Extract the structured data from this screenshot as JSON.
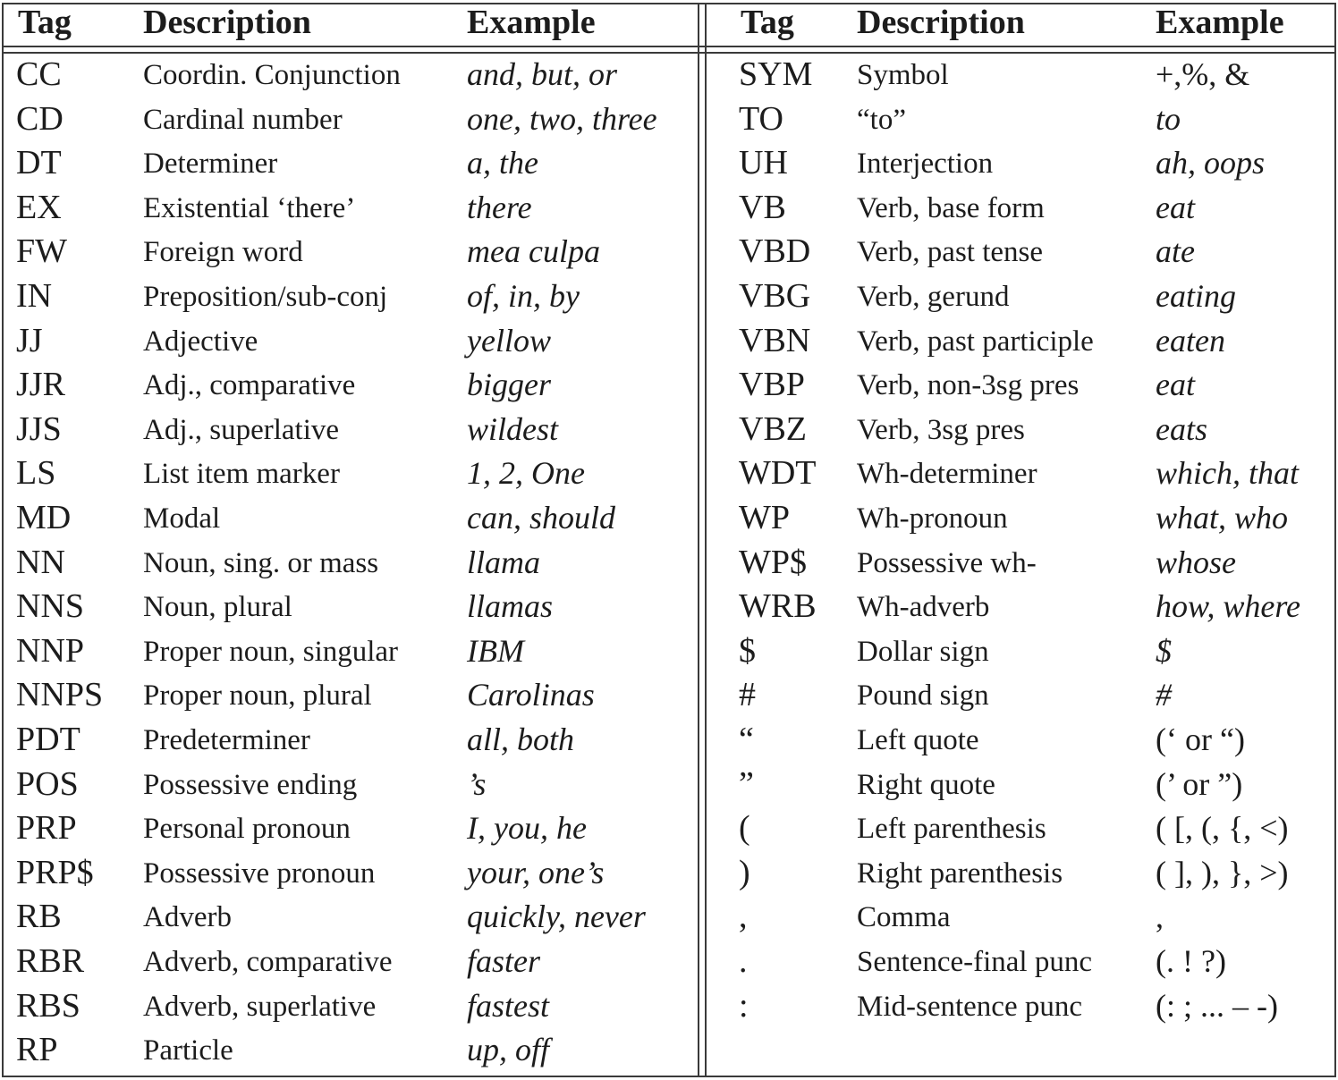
{
  "headers": {
    "left": {
      "tag": "Tag",
      "description": "Description",
      "example": "Example"
    },
    "right": {
      "tag": "Tag",
      "description": "Description",
      "example": "Example"
    }
  },
  "left_rows": [
    {
      "tag": "CC",
      "description": "Coordin. Conjunction",
      "example": "and, but, or",
      "italic": true
    },
    {
      "tag": "CD",
      "description": "Cardinal number",
      "example": "one, two, three",
      "italic": true
    },
    {
      "tag": "DT",
      "description": "Determiner",
      "example": "a, the",
      "italic": true
    },
    {
      "tag": "EX",
      "description": "Existential ‘there’",
      "example": "there",
      "italic": true
    },
    {
      "tag": "FW",
      "description": "Foreign word",
      "example": "mea culpa",
      "italic": true
    },
    {
      "tag": "IN",
      "description": "Preposition/sub-conj",
      "example": "of, in, by",
      "italic": true
    },
    {
      "tag": "JJ",
      "description": "Adjective",
      "example": "yellow",
      "italic": true
    },
    {
      "tag": "JJR",
      "description": "Adj., comparative",
      "example": "bigger",
      "italic": true
    },
    {
      "tag": "JJS",
      "description": "Adj., superlative",
      "example": "wildest",
      "italic": true
    },
    {
      "tag": "LS",
      "description": "List item marker",
      "example": "1, 2, One",
      "italic": true
    },
    {
      "tag": "MD",
      "description": "Modal",
      "example": "can, should",
      "italic": true
    },
    {
      "tag": "NN",
      "description": "Noun, sing. or mass",
      "example": "llama",
      "italic": true
    },
    {
      "tag": "NNS",
      "description": "Noun, plural",
      "example": "llamas",
      "italic": true
    },
    {
      "tag": "NNP",
      "description": "Proper noun, singular",
      "example": "IBM",
      "italic": true
    },
    {
      "tag": "NNPS",
      "description": "Proper noun, plural",
      "example": "Carolinas",
      "italic": true
    },
    {
      "tag": "PDT",
      "description": "Predeterminer",
      "example": "all, both",
      "italic": true
    },
    {
      "tag": "POS",
      "description": "Possessive ending",
      "example": "’s",
      "italic": true
    },
    {
      "tag": "PRP",
      "description": "Personal pronoun",
      "example": "I, you, he",
      "italic": true
    },
    {
      "tag": "PRP$",
      "description": "Possessive pronoun",
      "example": "your, one’s",
      "italic": true
    },
    {
      "tag": "RB",
      "description": "Adverb",
      "example": "quickly, never",
      "italic": true
    },
    {
      "tag": "RBR",
      "description": "Adverb, comparative",
      "example": "faster",
      "italic": true
    },
    {
      "tag": "RBS",
      "description": "Adverb, superlative",
      "example": "fastest",
      "italic": true
    },
    {
      "tag": "RP",
      "description": "Particle",
      "example": "up, off",
      "italic": true
    }
  ],
  "right_rows": [
    {
      "tag": "SYM",
      "description": "Symbol",
      "example": "+,%, &",
      "italic": false
    },
    {
      "tag": "TO",
      "description": "“to”",
      "example": "to",
      "italic": true
    },
    {
      "tag": "UH",
      "description": "Interjection",
      "example": "ah, oops",
      "italic": true
    },
    {
      "tag": "VB",
      "description": "Verb, base form",
      "example": "eat",
      "italic": true
    },
    {
      "tag": "VBD",
      "description": "Verb, past tense",
      "example": "ate",
      "italic": true
    },
    {
      "tag": "VBG",
      "description": "Verb, gerund",
      "example": "eating",
      "italic": true
    },
    {
      "tag": "VBN",
      "description": "Verb, past participle",
      "example": "eaten",
      "italic": true
    },
    {
      "tag": "VBP",
      "description": "Verb, non-3sg pres",
      "example": "eat",
      "italic": true
    },
    {
      "tag": "VBZ",
      "description": "Verb, 3sg pres",
      "example": "eats",
      "italic": true
    },
    {
      "tag": "WDT",
      "description": "Wh-determiner",
      "example": "which, that",
      "italic": true
    },
    {
      "tag": "WP",
      "description": "Wh-pronoun",
      "example": "what, who",
      "italic": true
    },
    {
      "tag": "WP$",
      "description": "Possessive wh-",
      "example": "whose",
      "italic": true
    },
    {
      "tag": "WRB",
      "description": "Wh-adverb",
      "example": "how, where",
      "italic": true
    },
    {
      "tag": "$",
      "description": "Dollar sign",
      "example": "$",
      "italic": true
    },
    {
      "tag": "#",
      "description": "Pound sign",
      "example": "#",
      "italic": true
    },
    {
      "tag": "“",
      "description": "Left quote",
      "example": "(‘ or “)",
      "italic": false
    },
    {
      "tag": "”",
      "description": "Right quote",
      "example": "(’ or ”)",
      "italic": false
    },
    {
      "tag": "(",
      "description": "Left parenthesis",
      "example": "( [, (, {, <)",
      "italic": false
    },
    {
      "tag": ")",
      "description": "Right parenthesis",
      "example": "( ], ), }, >)",
      "italic": false
    },
    {
      "tag": ",",
      "description": "Comma",
      "example": ",",
      "italic": false
    },
    {
      "tag": ".",
      "description": "Sentence-final punc",
      "example": "(. ! ?)",
      "italic": false
    },
    {
      "tag": ":",
      "description": "Mid-sentence punc",
      "example": "(: ; ... – -)",
      "italic": false
    }
  ]
}
